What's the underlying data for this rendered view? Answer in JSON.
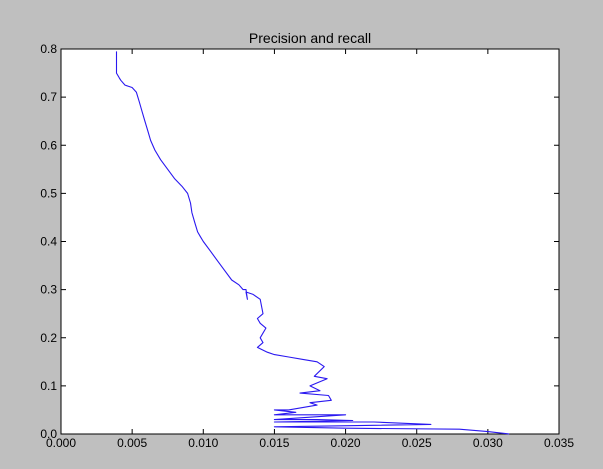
{
  "chart_data": {
    "type": "line",
    "title": "Precision and recall",
    "xlabel": "",
    "ylabel": "",
    "xlim": [
      0.0,
      0.035
    ],
    "ylim": [
      0.0,
      0.8
    ],
    "x_ticks": [
      "0.000",
      "0.005",
      "0.010",
      "0.015",
      "0.020",
      "0.025",
      "0.030",
      "0.035"
    ],
    "y_ticks": [
      "0.0",
      "0.1",
      "0.2",
      "0.3",
      "0.4",
      "0.5",
      "0.6",
      "0.7",
      "0.8"
    ],
    "grid": false,
    "line_color": "#2a18f0",
    "series": [
      {
        "x": [
          0.0039,
          0.0039,
          0.0041,
          0.0042,
          0.0045,
          0.005,
          0.0053,
          0.0055,
          0.0057,
          0.0059,
          0.0061,
          0.0063,
          0.0066,
          0.007,
          0.0075,
          0.008,
          0.0085,
          0.0089,
          0.0091,
          0.0092,
          0.0094,
          0.0096,
          0.0098,
          0.01,
          0.0105,
          0.011,
          0.0115,
          0.012,
          0.0125,
          0.0128,
          0.013,
          0.0131,
          0.013,
          0.0135,
          0.014,
          0.0142,
          0.0138,
          0.014,
          0.0144,
          0.014,
          0.0142,
          0.0138,
          0.0145,
          0.015,
          0.016,
          0.017,
          0.018,
          0.0185,
          0.0178,
          0.0187,
          0.0175,
          0.0182,
          0.0168,
          0.0188,
          0.019,
          0.0175,
          0.018,
          0.016,
          0.015,
          0.0165,
          0.015,
          0.02,
          0.015,
          0.018,
          0.0205,
          0.015,
          0.022,
          0.026,
          0.015,
          0.02,
          0.028,
          0.03,
          0.0315
        ],
        "y": [
          0.795,
          0.75,
          0.74,
          0.735,
          0.725,
          0.72,
          0.71,
          0.69,
          0.67,
          0.65,
          0.63,
          0.61,
          0.59,
          0.57,
          0.55,
          0.53,
          0.515,
          0.5,
          0.48,
          0.46,
          0.44,
          0.42,
          0.41,
          0.4,
          0.38,
          0.36,
          0.34,
          0.32,
          0.31,
          0.3,
          0.3,
          0.28,
          0.295,
          0.29,
          0.28,
          0.25,
          0.24,
          0.23,
          0.22,
          0.2,
          0.19,
          0.18,
          0.17,
          0.165,
          0.16,
          0.155,
          0.15,
          0.14,
          0.12,
          0.115,
          0.1,
          0.09,
          0.085,
          0.08,
          0.07,
          0.065,
          0.06,
          0.05,
          0.05,
          0.045,
          0.04,
          0.04,
          0.03,
          0.03,
          0.028,
          0.025,
          0.025,
          0.02,
          0.015,
          0.012,
          0.01,
          0.005,
          0.0
        ]
      }
    ]
  }
}
